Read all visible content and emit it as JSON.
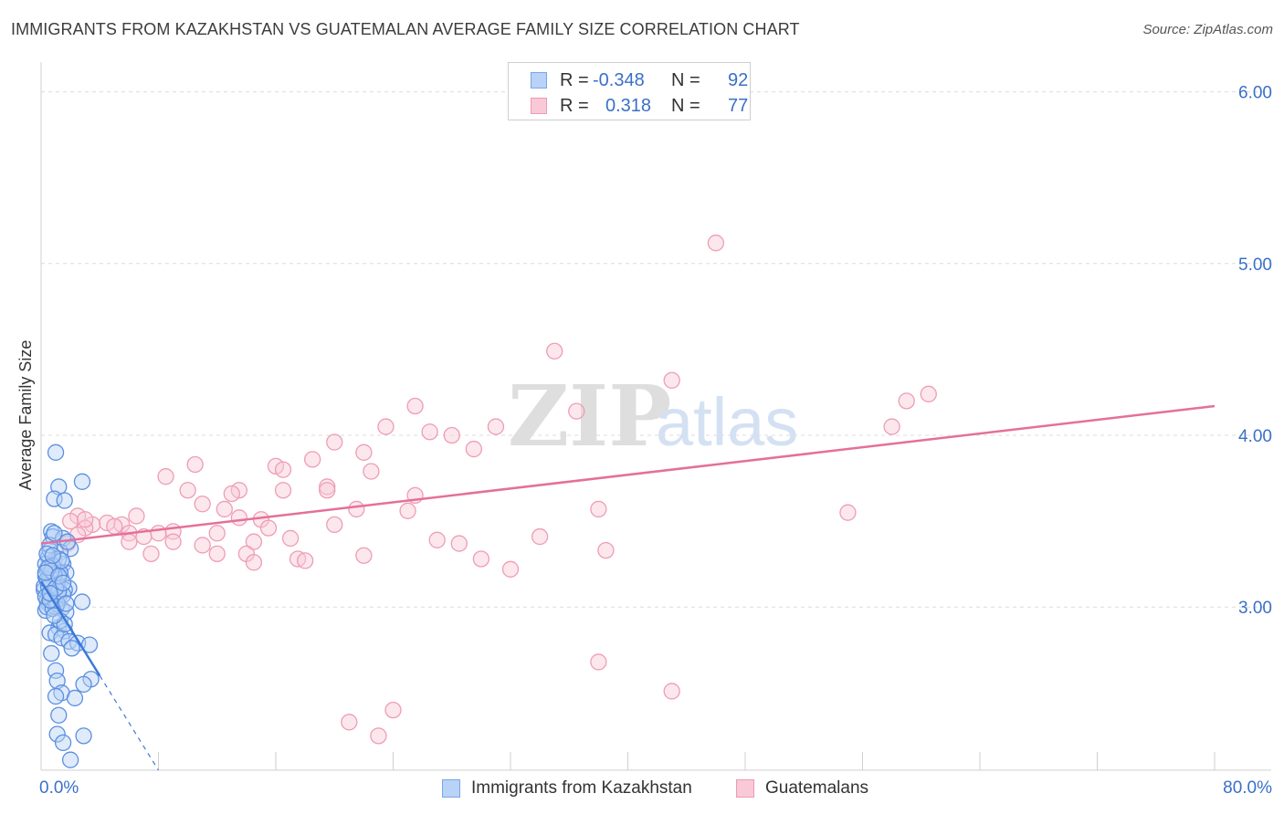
{
  "header": {
    "title": "IMMIGRANTS FROM KAZAKHSTAN VS GUATEMALAN AVERAGE FAMILY SIZE CORRELATION CHART",
    "source": "Source: ZipAtlas.com"
  },
  "watermark": {
    "zip": "ZIP",
    "atlas": "atlas"
  },
  "legend": {
    "r_label": "R =",
    "n_label": "N =",
    "series": [
      {
        "name": "Immigrants from Kazakhstan",
        "r": "-0.348",
        "n": "92",
        "fill": "#b8d3f7",
        "stroke": "#7aa6e6"
      },
      {
        "name": "Guatemalans",
        "r": "0.318",
        "n": "77",
        "fill": "#f9c9d7",
        "stroke": "#ef9ab4"
      }
    ]
  },
  "colors": {
    "blue_point_stroke": "#5b8fe0",
    "blue_line": "#3b79d8",
    "pink_point_stroke": "#ee9db6",
    "pink_line": "#e4709a",
    "tick_label": "#3a70c8",
    "grid": "#dcdcdc"
  },
  "chart_data": {
    "type": "scatter",
    "title": "IMMIGRANTS FROM KAZAKHSTAN VS GUATEMALAN AVERAGE FAMILY SIZE CORRELATION CHART",
    "xlabel": "",
    "ylabel": "Average Family Size",
    "xlim": [
      0,
      80
    ],
    "ylim": [
      2.05,
      6.12
    ],
    "x_tick_labels": [
      "0.0%",
      "80.0%"
    ],
    "y_ticks": [
      3.0,
      4.0,
      5.0,
      6.0
    ],
    "y_tick_labels": [
      "3.00",
      "4.00",
      "5.00",
      "6.00"
    ],
    "grid": true,
    "legend_position": "top-center",
    "series": [
      {
        "name": "Immigrants from Kazakhstan",
        "r": -0.348,
        "n": 92,
        "trend": {
          "x0": 0.0,
          "y0": 3.15,
          "x1": 4.0,
          "y1": 2.6,
          "dash_to_x": 8.0,
          "dash_to_y": 2.05
        },
        "points": [
          [
            1.0,
            3.9
          ],
          [
            1.2,
            3.7
          ],
          [
            2.8,
            3.73
          ],
          [
            0.9,
            3.63
          ],
          [
            1.6,
            3.62
          ],
          [
            0.7,
            3.44
          ],
          [
            0.8,
            3.41
          ],
          [
            1.5,
            3.4
          ],
          [
            2.0,
            3.34
          ],
          [
            1.3,
            3.32
          ],
          [
            0.5,
            3.29
          ],
          [
            0.9,
            3.27
          ],
          [
            1.5,
            3.25
          ],
          [
            0.4,
            3.22
          ],
          [
            1.1,
            3.21
          ],
          [
            0.6,
            3.19
          ],
          [
            0.3,
            3.18
          ],
          [
            1.4,
            3.16
          ],
          [
            0.8,
            3.14
          ],
          [
            1.9,
            3.11
          ],
          [
            0.2,
            3.1
          ],
          [
            0.7,
            3.08
          ],
          [
            1.2,
            3.06
          ],
          [
            0.4,
            3.04
          ],
          [
            2.8,
            3.03
          ],
          [
            0.5,
            3.02
          ],
          [
            0.9,
            3.01
          ],
          [
            1.4,
            2.99
          ],
          [
            0.3,
            2.98
          ],
          [
            1.7,
            2.97
          ],
          [
            1.2,
            2.88
          ],
          [
            1.6,
            2.86
          ],
          [
            0.6,
            2.85
          ],
          [
            1.0,
            2.84
          ],
          [
            1.4,
            2.82
          ],
          [
            1.9,
            2.8
          ],
          [
            2.5,
            2.79
          ],
          [
            3.3,
            2.78
          ],
          [
            2.1,
            2.76
          ],
          [
            0.7,
            2.73
          ],
          [
            1.0,
            2.63
          ],
          [
            1.1,
            2.57
          ],
          [
            3.4,
            2.58
          ],
          [
            2.9,
            2.55
          ],
          [
            1.4,
            2.5
          ],
          [
            1.0,
            2.48
          ],
          [
            2.3,
            2.47
          ],
          [
            1.2,
            2.37
          ],
          [
            1.1,
            2.26
          ],
          [
            2.9,
            2.25
          ],
          [
            1.5,
            2.21
          ],
          [
            2.0,
            2.11
          ],
          [
            0.6,
            3.33
          ],
          [
            1.2,
            3.28
          ],
          [
            0.3,
            3.25
          ],
          [
            1.7,
            3.2
          ],
          [
            0.9,
            3.17
          ],
          [
            0.5,
            3.15
          ],
          [
            1.1,
            3.13
          ],
          [
            0.2,
            3.12
          ],
          [
            1.6,
            3.1
          ],
          [
            0.7,
            3.05
          ],
          [
            0.4,
            3.0
          ],
          [
            1.0,
            3.0
          ],
          [
            1.8,
            3.38
          ],
          [
            0.6,
            3.36
          ],
          [
            0.9,
            3.43
          ],
          [
            0.4,
            3.31
          ],
          [
            1.3,
            3.2
          ],
          [
            0.8,
            3.24
          ],
          [
            0.5,
            3.12
          ],
          [
            1.5,
            3.07
          ],
          [
            0.3,
            3.06
          ],
          [
            1.1,
            3.02
          ],
          [
            0.8,
            2.99
          ],
          [
            1.3,
            2.92
          ],
          [
            1.6,
            2.9
          ],
          [
            0.9,
            3.19
          ],
          [
            0.4,
            3.16
          ],
          [
            1.2,
            3.09
          ],
          [
            0.7,
            3.21
          ],
          [
            1.4,
            3.27
          ],
          [
            0.6,
            3.04
          ],
          [
            1.0,
            3.11
          ],
          [
            0.5,
            3.23
          ],
          [
            1.7,
            3.02
          ],
          [
            0.9,
            2.95
          ],
          [
            0.3,
            3.2
          ],
          [
            1.2,
            3.18
          ],
          [
            0.8,
            3.3
          ],
          [
            1.5,
            3.14
          ],
          [
            0.6,
            3.08
          ]
        ]
      },
      {
        "name": "Guatemalans",
        "r": 0.318,
        "n": 77,
        "trend": {
          "x0": 0.0,
          "y0": 3.37,
          "x1": 80.0,
          "y1": 4.17
        },
        "points": [
          [
            46.0,
            5.12
          ],
          [
            35.0,
            4.49
          ],
          [
            43.0,
            4.32
          ],
          [
            60.5,
            4.24
          ],
          [
            59.0,
            4.2
          ],
          [
            25.5,
            4.17
          ],
          [
            36.5,
            4.14
          ],
          [
            23.5,
            4.05
          ],
          [
            31.0,
            4.05
          ],
          [
            26.5,
            4.02
          ],
          [
            28.0,
            4.0
          ],
          [
            58.0,
            4.05
          ],
          [
            20.0,
            3.96
          ],
          [
            22.0,
            3.9
          ],
          [
            29.5,
            3.92
          ],
          [
            18.5,
            3.86
          ],
          [
            10.5,
            3.83
          ],
          [
            16.0,
            3.82
          ],
          [
            16.5,
            3.8
          ],
          [
            22.5,
            3.79
          ],
          [
            8.5,
            3.76
          ],
          [
            10.0,
            3.68
          ],
          [
            13.5,
            3.68
          ],
          [
            16.5,
            3.68
          ],
          [
            19.5,
            3.7
          ],
          [
            19.5,
            3.68
          ],
          [
            25.5,
            3.65
          ],
          [
            13.0,
            3.66
          ],
          [
            11.0,
            3.6
          ],
          [
            12.5,
            3.57
          ],
          [
            21.5,
            3.57
          ],
          [
            25.0,
            3.56
          ],
          [
            38.0,
            3.57
          ],
          [
            55.0,
            3.55
          ],
          [
            2.5,
            3.53
          ],
          [
            6.5,
            3.53
          ],
          [
            13.5,
            3.52
          ],
          [
            15.0,
            3.51
          ],
          [
            5.5,
            3.48
          ],
          [
            3.5,
            3.48
          ],
          [
            4.5,
            3.49
          ],
          [
            2.0,
            3.5
          ],
          [
            20.0,
            3.48
          ],
          [
            3.0,
            3.46
          ],
          [
            5.0,
            3.47
          ],
          [
            8.0,
            3.43
          ],
          [
            9.0,
            3.44
          ],
          [
            12.0,
            3.43
          ],
          [
            15.5,
            3.46
          ],
          [
            2.5,
            3.42
          ],
          [
            6.0,
            3.43
          ],
          [
            7.0,
            3.41
          ],
          [
            9.0,
            3.38
          ],
          [
            11.0,
            3.36
          ],
          [
            14.5,
            3.38
          ],
          [
            17.0,
            3.4
          ],
          [
            27.0,
            3.39
          ],
          [
            28.5,
            3.37
          ],
          [
            34.0,
            3.41
          ],
          [
            1.8,
            3.37
          ],
          [
            7.5,
            3.31
          ],
          [
            14.0,
            3.31
          ],
          [
            14.5,
            3.26
          ],
          [
            17.5,
            3.28
          ],
          [
            18.0,
            3.27
          ],
          [
            22.0,
            3.3
          ],
          [
            30.0,
            3.28
          ],
          [
            32.0,
            3.22
          ],
          [
            38.5,
            3.33
          ],
          [
            6.0,
            3.38
          ],
          [
            12.0,
            3.31
          ],
          [
            38.0,
            2.68
          ],
          [
            43.0,
            2.51
          ],
          [
            24.0,
            2.4
          ],
          [
            21.0,
            2.33
          ],
          [
            23.0,
            2.25
          ],
          [
            3.0,
            3.51
          ]
        ]
      }
    ]
  }
}
